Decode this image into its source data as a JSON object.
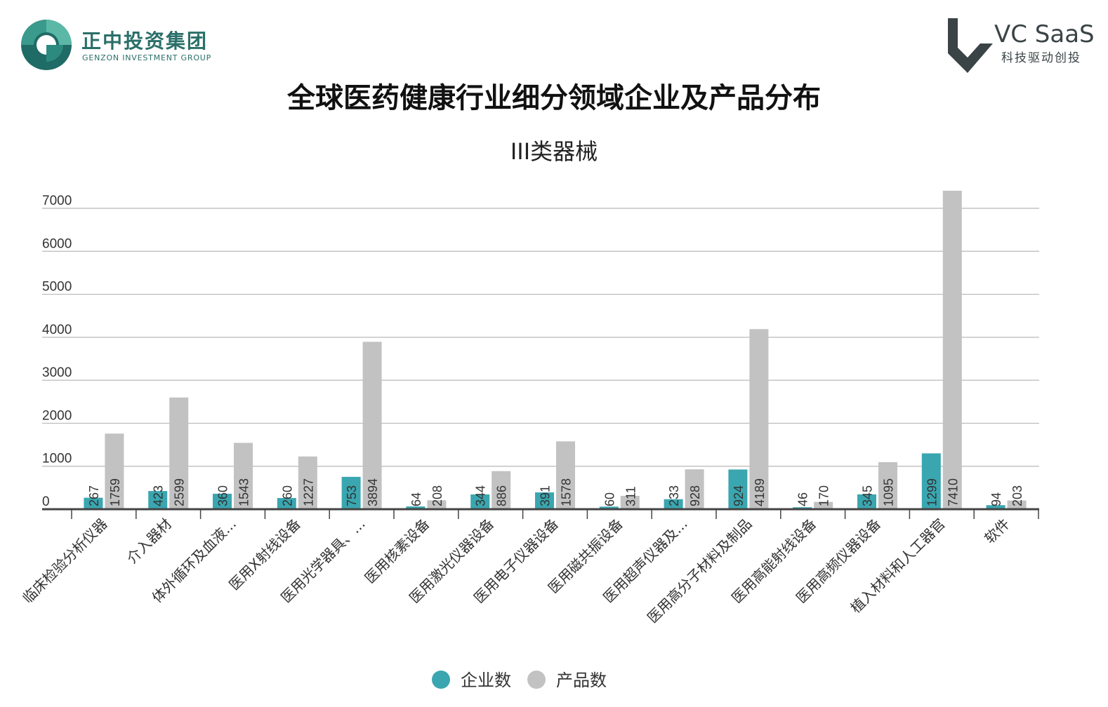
{
  "brand_left": {
    "name_cn": "正中投资集团",
    "name_en": "GENZON INVESTMENT GROUP",
    "color_primary": "#3a9a8c",
    "color_dark": "#1f6b66"
  },
  "brand_right": {
    "name": "VC SaaS",
    "tagline": "科技驱动创投",
    "color": "#3a4446"
  },
  "chart_data": {
    "type": "bar",
    "title": "全球医药健康行业细分领域企业及产品分布",
    "subtitle": "III类器械",
    "categories": [
      "临床检验分析仪器",
      "介入器材",
      "体外循环及血液...",
      "医用X射线设备",
      "医用光学器具、...",
      "医用核素设备",
      "医用激光仪器设备",
      "医用电子仪器设备",
      "医用磁共振设备",
      "医用超声仪器及...",
      "医用高分子材料及制品",
      "医用高能射线设备",
      "医用高频仪器设备",
      "植入材料和人工器官",
      "软件"
    ],
    "series": [
      {
        "name": "企业数",
        "color": "#3aa6b0",
        "values": [
          267,
          423,
          360,
          260,
          753,
          64,
          344,
          391,
          60,
          233,
          924,
          46,
          345,
          1299,
          94
        ]
      },
      {
        "name": "产品数",
        "color": "#c2c2c2",
        "values": [
          1759,
          2599,
          1543,
          1227,
          3894,
          208,
          886,
          1578,
          311,
          928,
          4189,
          170,
          1095,
          7410,
          203
        ]
      }
    ],
    "y_ticks": [
      "0",
      "1000",
      "2000",
      "3000",
      "4000",
      "5000",
      "6000",
      "7000"
    ],
    "ylim": [
      0,
      7410
    ],
    "grid": true,
    "legend_position": "bottom-center",
    "xlabel": "",
    "ylabel": ""
  }
}
